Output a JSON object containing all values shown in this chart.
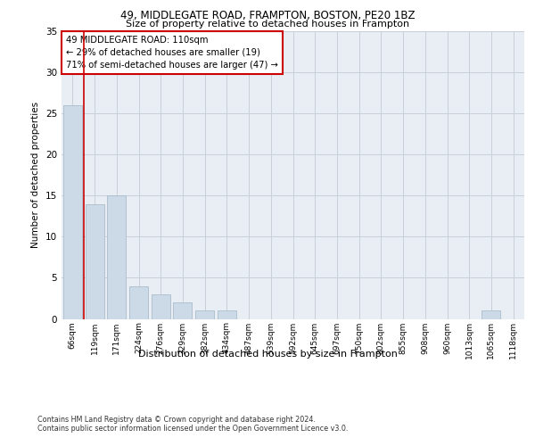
{
  "title1": "49, MIDDLEGATE ROAD, FRAMPTON, BOSTON, PE20 1BZ",
  "title2": "Size of property relative to detached houses in Frampton",
  "xlabel": "Distribution of detached houses by size in Frampton",
  "ylabel": "Number of detached properties",
  "categories": [
    "66sqm",
    "119sqm",
    "171sqm",
    "224sqm",
    "276sqm",
    "329sqm",
    "382sqm",
    "434sqm",
    "487sqm",
    "539sqm",
    "592sqm",
    "645sqm",
    "697sqm",
    "750sqm",
    "802sqm",
    "855sqm",
    "908sqm",
    "960sqm",
    "1013sqm",
    "1065sqm",
    "1118sqm"
  ],
  "values": [
    26,
    14,
    15,
    4,
    3,
    2,
    1,
    1,
    0,
    0,
    0,
    0,
    0,
    0,
    0,
    0,
    0,
    0,
    0,
    1,
    0
  ],
  "bar_color": "#ccd9e6",
  "bar_edgecolor": "#aabccc",
  "vline_color": "#cc0000",
  "vline_x": 0.5,
  "annotation_lines": [
    "49 MIDDLEGATE ROAD: 110sqm",
    "← 29% of detached houses are smaller (19)",
    "71% of semi-detached houses are larger (47) →"
  ],
  "annotation_box_edgecolor": "#cc0000",
  "ylim": [
    0,
    35
  ],
  "yticks": [
    0,
    5,
    10,
    15,
    20,
    25,
    30,
    35
  ],
  "footer1": "Contains HM Land Registry data © Crown copyright and database right 2024.",
  "footer2": "Contains public sector information licensed under the Open Government Licence v3.0.",
  "bg_color": "#ffffff",
  "plot_bg_color": "#e8eef4",
  "grid_color": "#c8d0d8"
}
